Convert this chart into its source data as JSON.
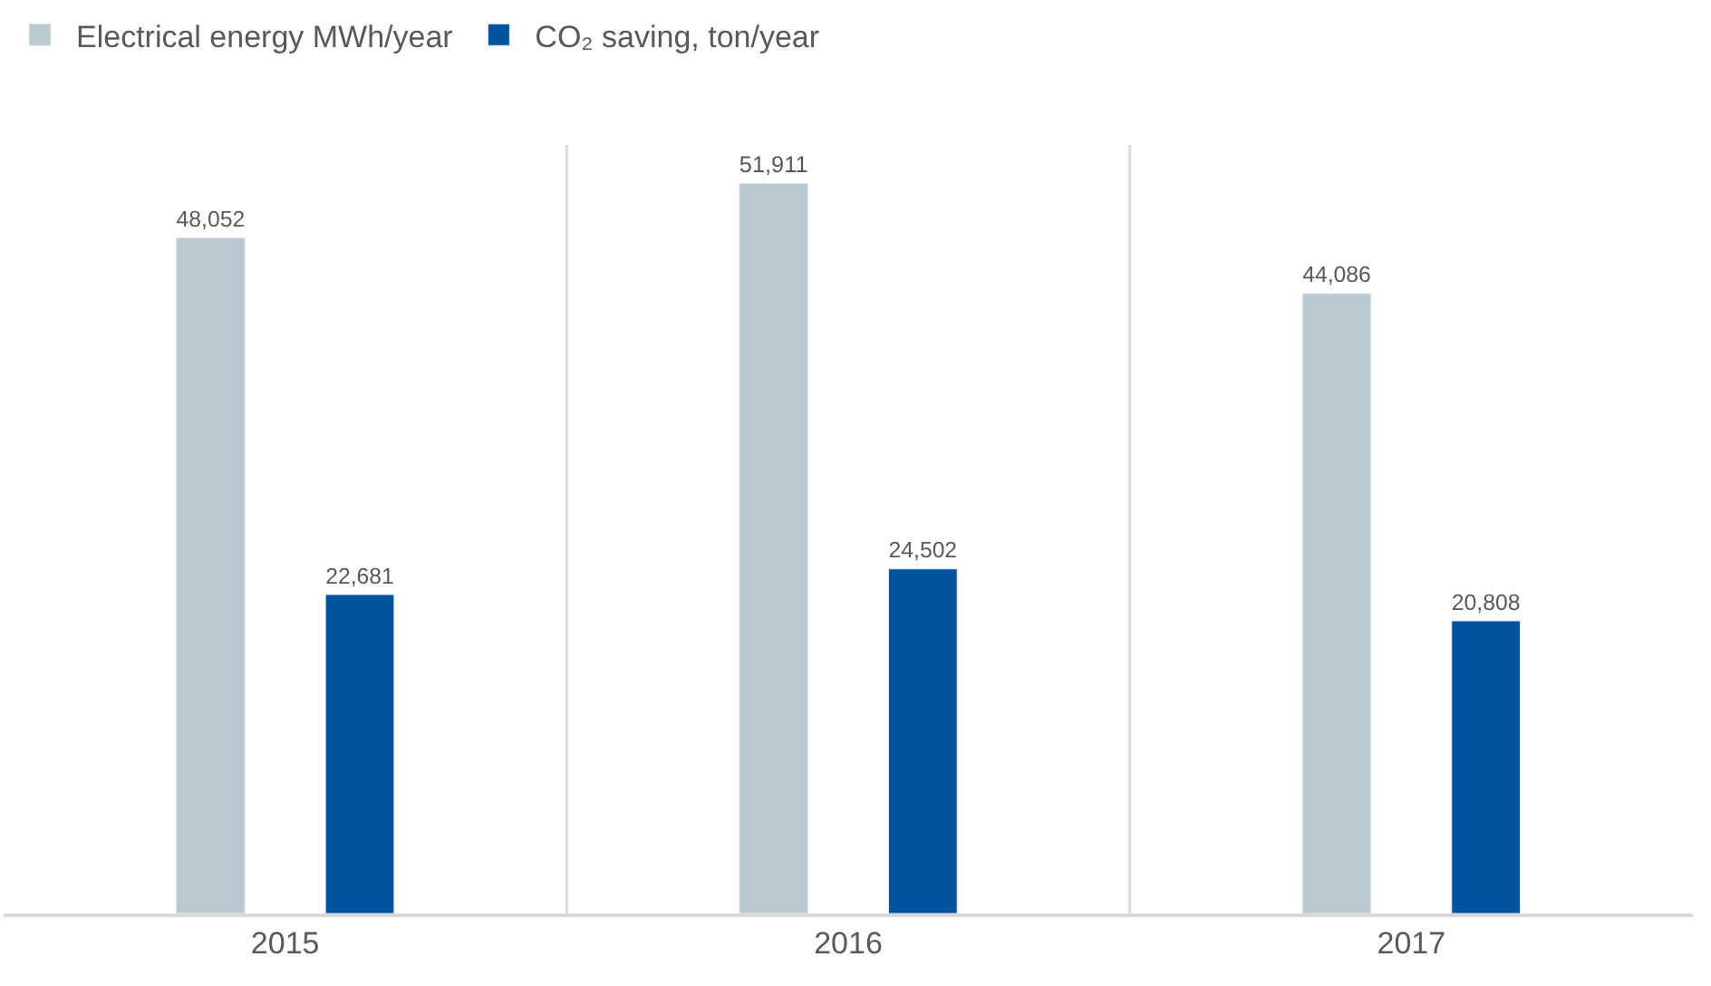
{
  "chart_data": {
    "type": "bar",
    "categories": [
      "2015",
      "2016",
      "2017"
    ],
    "series": [
      {
        "name": "Electrical energy MWh/year",
        "color": "#b9c9d2",
        "values": [
          48052,
          51911,
          44086
        ],
        "value_labels": [
          "48,052",
          "51,911",
          "44,086"
        ]
      },
      {
        "name": "CO₂ saving, ton/year",
        "color": "#00539f",
        "values": [
          22681,
          24502,
          20808
        ],
        "value_labels": [
          "22,681",
          "24,502",
          "20,808"
        ]
      }
    ],
    "grid": "x",
    "legend": "top left",
    "tick_labels": "x"
  }
}
